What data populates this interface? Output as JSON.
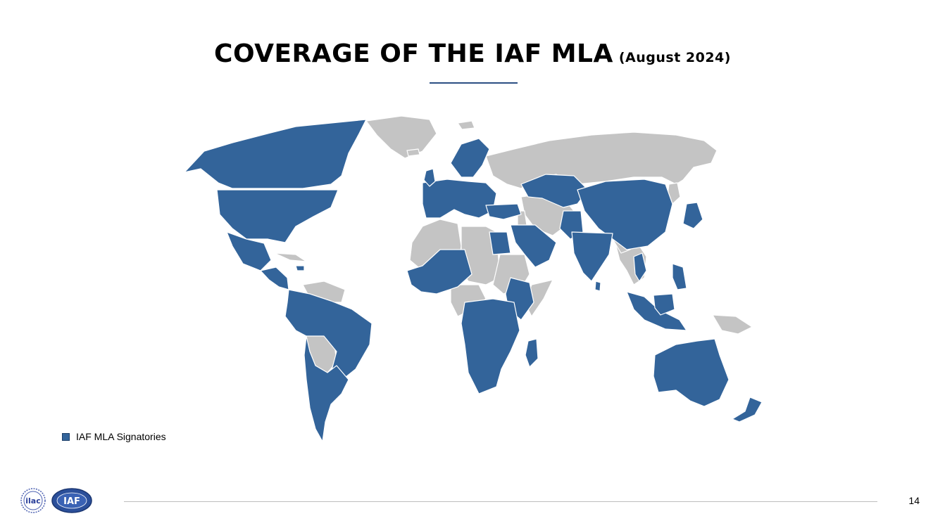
{
  "slide": {
    "title": "COVERAGE OF THE IAF MLA",
    "subtitle": "(August 2024)",
    "page_number": "14"
  },
  "legend": {
    "label": "IAF MLA Signatories"
  },
  "logos": {
    "ilac": "ilac",
    "iaf": "IAF"
  },
  "colors": {
    "signatory": "#33649a",
    "non_signatory": "#c4c4c4",
    "border": "#ffffff",
    "accent": "#2b4f83"
  }
}
